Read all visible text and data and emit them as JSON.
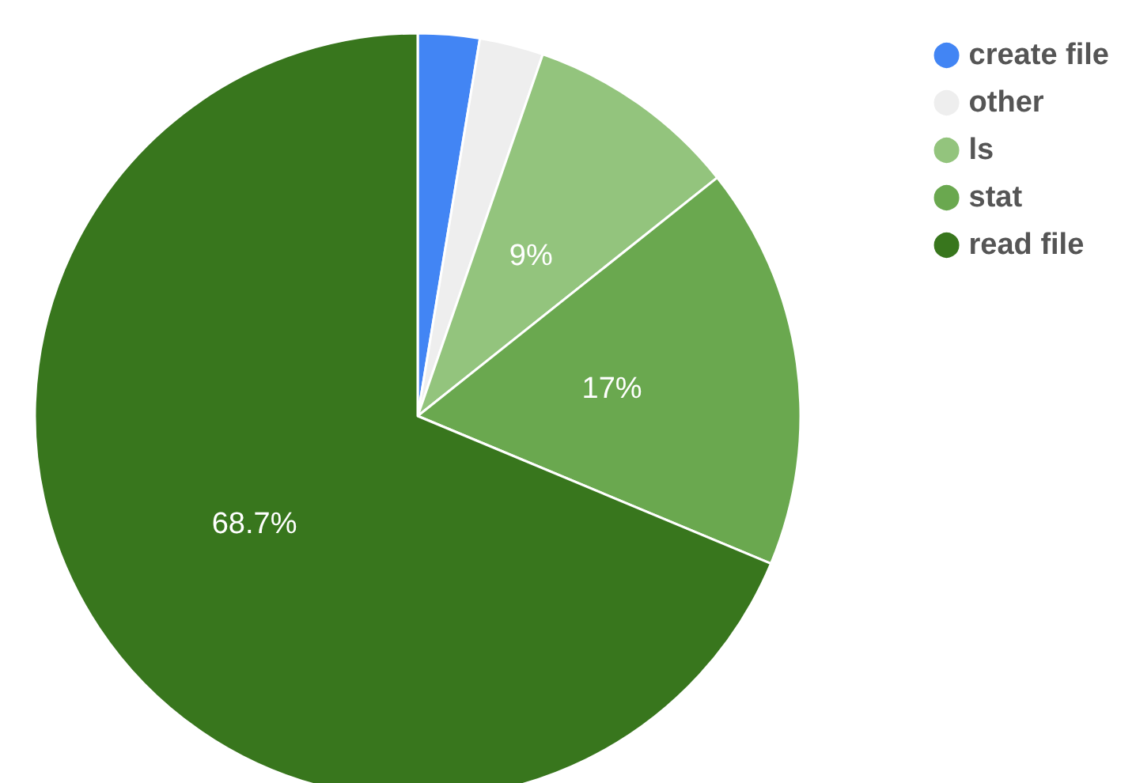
{
  "chart_data": {
    "type": "pie",
    "categories": [
      "create file",
      "other",
      "ls",
      "stat",
      "read file"
    ],
    "values": [
      2.6,
      2.7,
      9,
      17,
      68.7
    ],
    "colors": [
      "#4285f4",
      "#eeeeee",
      "#93c47d",
      "#6aa84f",
      "#38761d"
    ],
    "value_labels": [
      null,
      null,
      "9%",
      "17%",
      "68.7%"
    ],
    "legend": "top right"
  }
}
